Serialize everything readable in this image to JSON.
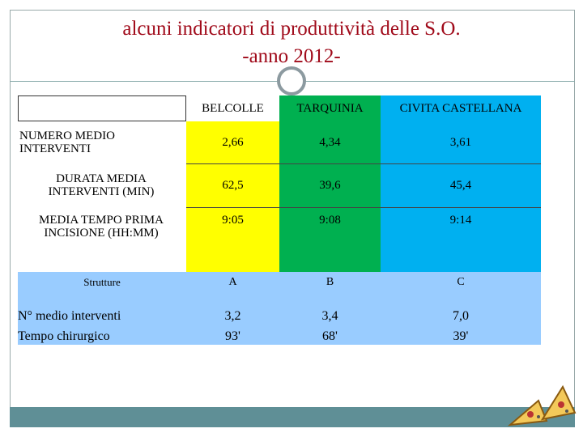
{
  "title": [
    "alcuni indicatori di produttività delle S.O.",
    "-anno 2012-"
  ],
  "table": {
    "columns": [
      "BELCOLLE",
      "TARQUINIA",
      "CIVITA CASTELLANA"
    ],
    "rows": [
      {
        "label": "NUMERO MEDIO INTERVENTI",
        "values": [
          "2,66",
          "4,34",
          "3,61"
        ]
      },
      {
        "label": "DURATA MEDIA INTERVENTI (MIN)",
        "values": [
          "62,5",
          "39,6",
          "45,4"
        ]
      },
      {
        "label": "MEDIA TEMPO PRIMA INCISIONE (HH:MM)",
        "values": [
          "9:05",
          "9:08",
          "9:14"
        ]
      }
    ]
  },
  "summary": {
    "header": "Strutture",
    "columns": [
      "A",
      "B",
      "C"
    ],
    "labels": [
      "N° medio interventi",
      "Tempo chirurgico"
    ],
    "rows": [
      [
        "3,2",
        "3,4",
        "7,0"
      ],
      [
        "93'",
        "68'",
        "39'"
      ]
    ]
  }
}
